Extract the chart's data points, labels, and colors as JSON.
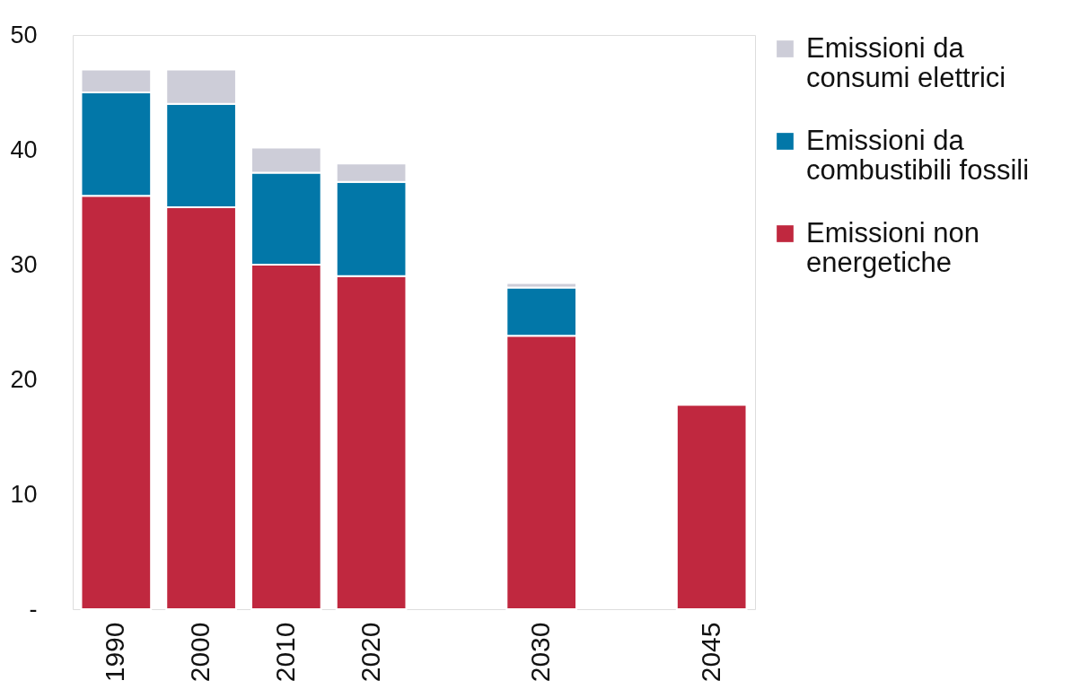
{
  "chart_data": {
    "type": "bar",
    "stacked": true,
    "categories": [
      "1990",
      "2000",
      "2010",
      "2020",
      null,
      "2030",
      null,
      "2045"
    ],
    "series": [
      {
        "name": "Emissioni non energetiche",
        "color": "#c0283f",
        "values": [
          36,
          35,
          30,
          29,
          null,
          23.8,
          null,
          17.8
        ]
      },
      {
        "name": "Emissioni da combustibili fossili",
        "color": "#0277a8",
        "values": [
          9,
          9,
          8,
          8.2,
          null,
          4.2,
          null,
          null
        ]
      },
      {
        "name": "Emissioni da consumi elettrici",
        "color": "#cdcdd8",
        "values": [
          2,
          3,
          2.2,
          1.6,
          null,
          0.4,
          null,
          null
        ]
      }
    ],
    "ylim": [
      0,
      50
    ],
    "yticks": [
      {
        "value": 0,
        "label": "-"
      },
      10,
      20,
      30,
      40,
      50
    ],
    "grid": false,
    "legend": "right"
  }
}
